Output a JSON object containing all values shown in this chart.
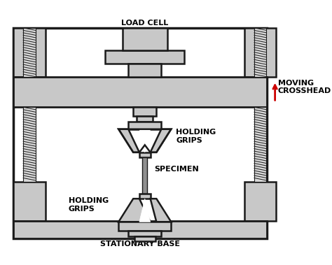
{
  "bg_color": "#ffffff",
  "gray_fill": "#c8c8c8",
  "dark_outline": "#1a1a1a",
  "text_color": "#000000",
  "red_arrow_color": "#cc0000",
  "labels": {
    "load_cell": "LOAD CELL",
    "moving_crosshead": "MOVING\nCROSSHEAD",
    "holding_grips_top": "HOLDING\nGRIPS",
    "specimen": "SPECIMEN",
    "holding_grips_bot": "HOLDING\nGRIPS",
    "stationary_base": "STATIONARY BASE"
  },
  "figsize": [
    4.74,
    3.79
  ],
  "dpi": 100
}
